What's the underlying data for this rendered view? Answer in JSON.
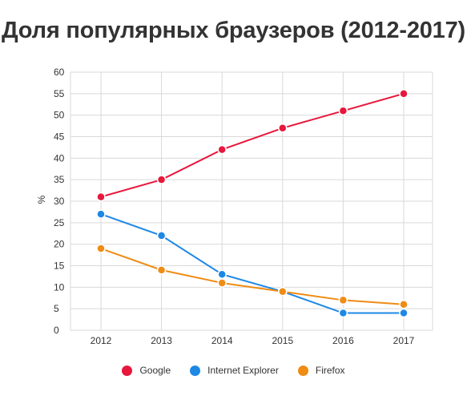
{
  "chart_data": {
    "type": "line",
    "title": "Доля популярных браузеров (2012-2017)",
    "xlabel": "",
    "ylabel": "%",
    "categories": [
      "2012",
      "2013",
      "2014",
      "2015",
      "2016",
      "2017"
    ],
    "ylim": [
      0,
      60
    ],
    "yticks": [
      0,
      5,
      10,
      15,
      20,
      25,
      30,
      35,
      40,
      45,
      50,
      55,
      60
    ],
    "grid": true,
    "legend_position": "bottom",
    "series": [
      {
        "name": "Google",
        "color": "#e8173c",
        "values": [
          31,
          35,
          42,
          47,
          51,
          55
        ]
      },
      {
        "name": "Internet Explorer",
        "color": "#1e88e5",
        "values": [
          27,
          22,
          13,
          9,
          4,
          4
        ]
      },
      {
        "name": "Firefox",
        "color": "#ef8c14",
        "values": [
          19,
          14,
          11,
          9,
          7,
          6
        ]
      }
    ]
  }
}
